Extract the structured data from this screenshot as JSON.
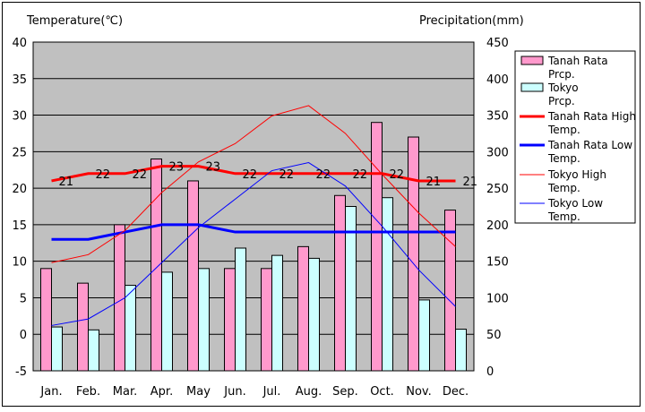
{
  "chart_data": {
    "type": "bar",
    "categories": [
      "Jan.",
      "Feb.",
      "Mar.",
      "Apr.",
      "May",
      "Jun.",
      "Jul.",
      "Aug.",
      "Sep.",
      "Oct.",
      "Nov.",
      "Dec."
    ],
    "ylabel_left": "Temperature(℃)",
    "ylabel_right": "Precipitation(mm)",
    "ylim_left": [
      -5,
      40
    ],
    "ylim_right": [
      0,
      450
    ],
    "left_ticks": [
      40,
      35,
      30,
      25,
      20,
      15,
      10,
      5,
      0,
      -5
    ],
    "right_ticks": [
      450,
      400,
      350,
      300,
      250,
      200,
      150,
      100,
      50,
      0
    ],
    "grid": "horizontal",
    "legend_position": "right",
    "plot_background": "#c0c0c0",
    "bar_series": [
      {
        "name": "Tanah Rata Prcp.",
        "color": "#ff99cc",
        "values": [
          140,
          120,
          200,
          290,
          260,
          140,
          140,
          170,
          240,
          340,
          320,
          220
        ]
      },
      {
        "name": "Tokyo Prcp.",
        "color": "#ccffff",
        "values": [
          60,
          56,
          117,
          135,
          140,
          168,
          158,
          154,
          225,
          237,
          97,
          57
        ]
      }
    ],
    "line_series": [
      {
        "name": "Tanah Rata High Temp.",
        "color": "#ff0000",
        "width": 3,
        "values": [
          21,
          22,
          22,
          23,
          23,
          22,
          22,
          22,
          22,
          22,
          21,
          21
        ],
        "data_labels": [
          "21",
          "22",
          "22",
          "23",
          "23",
          "22",
          "22",
          "22",
          "22",
          "22",
          "21",
          "21"
        ]
      },
      {
        "name": "Tanah Rata Low Temp.",
        "color": "#0000ff",
        "width": 3,
        "values": [
          13,
          13,
          14,
          15,
          15,
          14,
          14,
          14,
          14,
          14,
          14,
          14
        ]
      },
      {
        "name": "Tokyo High Temp.",
        "color": "#ff0000",
        "width": 1,
        "values": [
          9.8,
          10.9,
          14.2,
          19.4,
          23.6,
          26.1,
          29.9,
          31.3,
          27.5,
          21.9,
          16.6,
          12.0
        ]
      },
      {
        "name": "Tokyo Low Temp.",
        "color": "#0000ff",
        "width": 1,
        "values": [
          1.2,
          2.1,
          5.0,
          9.8,
          14.6,
          18.5,
          22.4,
          23.5,
          20.3,
          14.8,
          8.8,
          3.8
        ]
      }
    ]
  },
  "legend": [
    {
      "label": "Tanah Rata Prcp.",
      "kind": "bar",
      "color": "#ff99cc"
    },
    {
      "label": "Tokyo Prcp.",
      "kind": "bar",
      "color": "#ccffff"
    },
    {
      "label": "Tanah Rata High Temp.",
      "kind": "line",
      "color": "#ff0000",
      "width": 3
    },
    {
      "label": "Tanah Rata Low Temp.",
      "kind": "line",
      "color": "#0000ff",
      "width": 3
    },
    {
      "label": "Tokyo High Temp.",
      "kind": "line",
      "color": "#ff0000",
      "width": 1
    },
    {
      "label": "Tokyo Low Temp.",
      "kind": "line",
      "color": "#0000ff",
      "width": 1
    }
  ]
}
